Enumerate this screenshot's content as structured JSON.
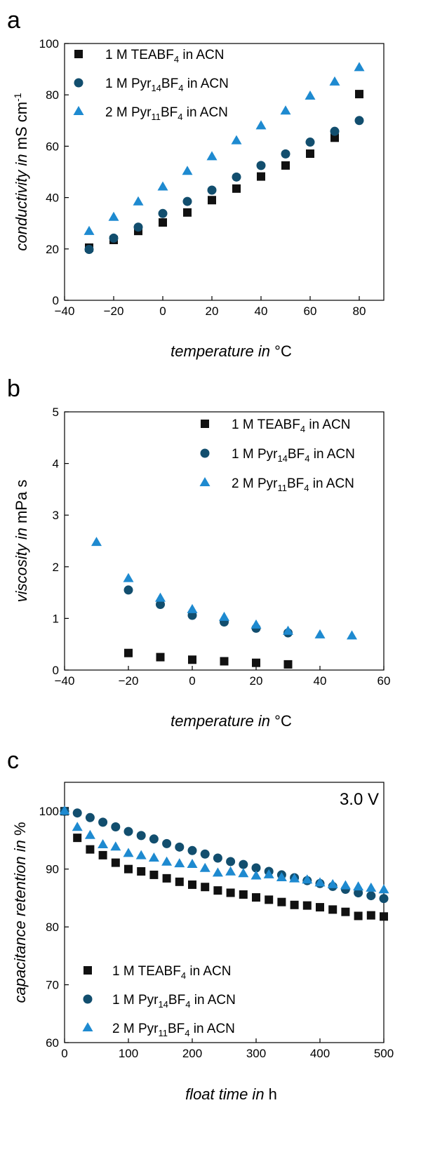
{
  "colors": {
    "TEABF4": "#111111",
    "Pyr14BF4": "#124E6E",
    "Pyr11BF4": "#1E8AD0"
  },
  "chart_data": [
    {
      "panel": "a",
      "type": "scatter",
      "xlabel_italic": "temperature in",
      "xlabel_unit": "°C",
      "ylabel_italic": "conductivity in",
      "ylabel_unit": "mS cm",
      "ylabel_sup": "-1",
      "xlim": [
        -40,
        90
      ],
      "ylim": [
        0,
        100
      ],
      "xticks": [
        -40,
        -20,
        0,
        20,
        40,
        60,
        80
      ],
      "xtick_labels": [
        "−40",
        "−20",
        "0",
        "20",
        "40",
        "60",
        "80"
      ],
      "yticks": [
        0,
        20,
        40,
        60,
        80,
        100
      ],
      "legend_position": "top-left",
      "series": [
        {
          "name": "1 M TEABF4 in ACN",
          "label": {
            "pre": "1 M TEABF",
            "sub": "4",
            "post": " in ACN"
          },
          "marker": "square",
          "color_key": "TEABF4",
          "x": [
            -30,
            -20,
            -10,
            0,
            10,
            20,
            30,
            40,
            50,
            60,
            70,
            80
          ],
          "y": [
            20.5,
            23.5,
            27,
            30.3,
            34.2,
            39,
            43.5,
            48.2,
            52.5,
            57.1,
            63.3,
            80.3
          ]
        },
        {
          "name": "1 M Pyr14BF4 in ACN",
          "label": {
            "pre": "1 M Pyr",
            "sub": "14",
            "mid": "BF",
            "sub2": "4",
            "post": " in ACN"
          },
          "marker": "circle",
          "color_key": "Pyr14BF4",
          "x": [
            -30,
            -20,
            -10,
            0,
            10,
            20,
            30,
            40,
            50,
            60,
            70,
            80
          ],
          "y": [
            19.8,
            24.2,
            28.5,
            33.8,
            38.5,
            42.9,
            48,
            52.5,
            57,
            61.6,
            65.8,
            70
          ]
        },
        {
          "name": "2 M Pyr11BF4 in ACN",
          "label": {
            "pre": "2 M Pyr",
            "sub": "11",
            "mid": "BF",
            "sub2": "4",
            "post": " in ACN"
          },
          "marker": "triangle",
          "color_key": "Pyr11BF4",
          "x": [
            -30,
            -20,
            -10,
            0,
            10,
            20,
            30,
            40,
            50,
            60,
            70,
            80
          ],
          "y": [
            26.8,
            32.3,
            38.3,
            44.1,
            50.2,
            55.9,
            62.1,
            67.9,
            73.7,
            79.5,
            85,
            90.6
          ]
        }
      ]
    },
    {
      "panel": "b",
      "type": "scatter",
      "xlabel_italic": "temperature in",
      "xlabel_unit": "°C",
      "ylabel_italic": "viscosity in",
      "ylabel_unit": "mPa s",
      "xlim": [
        -40,
        60
      ],
      "ylim": [
        0,
        5
      ],
      "xticks": [
        -40,
        -20,
        0,
        20,
        40,
        60
      ],
      "xtick_labels": [
        "−40",
        "−20",
        "0",
        "20",
        "40",
        "60"
      ],
      "yticks": [
        0,
        1,
        2,
        3,
        4,
        5
      ],
      "legend_position": "top-right",
      "series": [
        {
          "name": "1 M TEABF4 in ACN",
          "label": {
            "pre": "1 M TEABF",
            "sub": "4",
            "post": " in ACN"
          },
          "marker": "square",
          "color_key": "TEABF4",
          "x": [
            -20,
            -10,
            0,
            10,
            20,
            30
          ],
          "y": [
            0.33,
            0.25,
            0.2,
            0.17,
            0.14,
            0.11
          ]
        },
        {
          "name": "1 M Pyr14BF4 in ACN",
          "label": {
            "pre": "1 M Pyr",
            "sub": "14",
            "mid": "BF",
            "sub2": "4",
            "post": " in ACN"
          },
          "marker": "circle",
          "color_key": "Pyr14BF4",
          "x": [
            -20,
            -10,
            0,
            10,
            20,
            30
          ],
          "y": [
            1.55,
            1.27,
            1.06,
            0.93,
            0.81,
            0.72
          ]
        },
        {
          "name": "2 M Pyr11BF4 in ACN",
          "label": {
            "pre": "2 M Pyr",
            "sub": "11",
            "mid": "BF",
            "sub2": "4",
            "post": " in ACN"
          },
          "marker": "triangle",
          "color_key": "Pyr11BF4",
          "x": [
            -30,
            -20,
            -10,
            0,
            10,
            20,
            30,
            40,
            50
          ],
          "y": [
            2.47,
            1.77,
            1.39,
            1.17,
            1.02,
            0.87,
            0.75,
            0.68,
            0.66
          ]
        }
      ]
    },
    {
      "panel": "c",
      "type": "scatter",
      "xlabel_italic": "float time in",
      "xlabel_unit": "h",
      "ylabel_italic": "capacitance retention in",
      "ylabel_unit": "%",
      "annotation": "3.0 V",
      "xlim": [
        0,
        500
      ],
      "ylim": [
        60,
        105
      ],
      "xticks": [
        0,
        100,
        200,
        300,
        400,
        500
      ],
      "xtick_labels": [
        "0",
        "100",
        "200",
        "300",
        "400",
        "500"
      ],
      "yticks": [
        60,
        70,
        80,
        90,
        100
      ],
      "legend_position": "bottom-left",
      "series": [
        {
          "name": "1 M TEABF4 in ACN",
          "label": {
            "pre": "1 M TEABF",
            "sub": "4",
            "post": " in ACN"
          },
          "marker": "square",
          "color_key": "TEABF4",
          "x": [
            0,
            20,
            40,
            60,
            80,
            100,
            120,
            140,
            160,
            180,
            200,
            220,
            240,
            260,
            280,
            300,
            320,
            340,
            360,
            380,
            400,
            420,
            440,
            460,
            480,
            500
          ],
          "y": [
            100,
            95.4,
            93.4,
            92.4,
            91.1,
            90,
            89.6,
            89,
            88.4,
            87.8,
            87.3,
            86.9,
            86.3,
            85.9,
            85.6,
            85.1,
            84.7,
            84.3,
            83.8,
            83.7,
            83.4,
            83,
            82.6,
            81.9,
            82,
            81.8
          ]
        },
        {
          "name": "1 M Pyr14BF4 in ACN",
          "label": {
            "pre": "1 M Pyr",
            "sub": "14",
            "mid": "BF",
            "sub2": "4",
            "post": " in ACN"
          },
          "marker": "circle",
          "color_key": "Pyr14BF4",
          "x": [
            0,
            20,
            40,
            60,
            80,
            100,
            120,
            140,
            160,
            180,
            200,
            220,
            240,
            260,
            280,
            300,
            320,
            340,
            360,
            380,
            400,
            420,
            440,
            460,
            480,
            500
          ],
          "y": [
            100,
            99.7,
            98.9,
            98.1,
            97.3,
            96.5,
            95.8,
            95.2,
            94.4,
            93.8,
            93.2,
            92.6,
            91.9,
            91.3,
            90.8,
            90.2,
            89.6,
            89,
            88.5,
            88,
            87.5,
            87,
            86.5,
            85.9,
            85.4,
            84.9
          ]
        },
        {
          "name": "2 M Pyr11BF4 in ACN",
          "label": {
            "pre": "2 M Pyr",
            "sub": "11",
            "mid": "BF",
            "sub2": "4",
            "post": " in ACN"
          },
          "marker": "triangle",
          "color_key": "Pyr11BF4",
          "x": [
            0,
            20,
            40,
            60,
            80,
            100,
            120,
            140,
            160,
            180,
            200,
            220,
            240,
            260,
            280,
            300,
            320,
            340,
            360,
            380,
            400,
            420,
            440,
            460,
            480,
            500
          ],
          "y": [
            100,
            97.2,
            95.8,
            94.2,
            93.8,
            92.7,
            92.3,
            91.9,
            91.2,
            90.9,
            90.8,
            90.1,
            89.3,
            89.5,
            89.2,
            88.8,
            89,
            88.5,
            88.3,
            88.1,
            87.6,
            87.3,
            87.1,
            86.9,
            86.7,
            86.4
          ]
        }
      ]
    }
  ]
}
